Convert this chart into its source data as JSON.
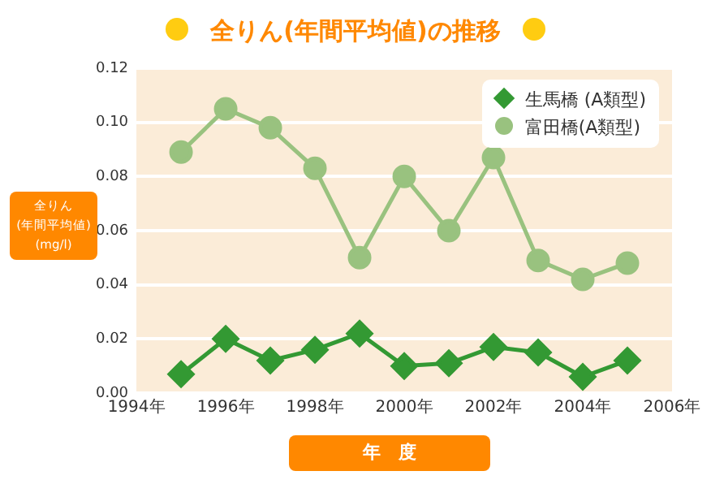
{
  "chart_data": {
    "type": "line",
    "title": "全りん(年間平均値)の推移",
    "xlabel": "年　度",
    "ylabel": "全りん\n(年間平均値)\n(mg/l)",
    "x": [
      1995,
      1996,
      1997,
      1998,
      1999,
      2000,
      2001,
      2002,
      2003,
      2004,
      2005
    ],
    "series": [
      {
        "name": "生馬橋 (A類型)",
        "color": "#339933",
        "marker": "diamond",
        "values": [
          0.007,
          0.02,
          0.012,
          0.016,
          0.022,
          0.01,
          0.011,
          0.017,
          0.015,
          0.006,
          0.012
        ]
      },
      {
        "name": "富田橋(A類型)",
        "color": "#99c27f",
        "marker": "circle",
        "values": [
          0.089,
          0.105,
          0.098,
          0.083,
          0.05,
          0.08,
          0.06,
          0.087,
          0.049,
          0.042,
          0.048
        ]
      }
    ],
    "xlim": [
      1994,
      2006
    ],
    "xticks": [
      {
        "value": 1994,
        "label": "1994年"
      },
      {
        "value": 1996,
        "label": "1996年"
      },
      {
        "value": 1998,
        "label": "1998年"
      },
      {
        "value": 2000,
        "label": "2000年"
      },
      {
        "value": 2002,
        "label": "2002年"
      },
      {
        "value": 2004,
        "label": "2004年"
      },
      {
        "value": 2006,
        "label": "2006年"
      }
    ],
    "ylim": [
      0,
      0.12
    ],
    "yticks": [
      {
        "value": 0,
        "label": "0.00"
      },
      {
        "value": 0.02,
        "label": "0.02"
      },
      {
        "value": 0.04,
        "label": "0.04"
      },
      {
        "value": 0.06,
        "label": "0.06"
      },
      {
        "value": 0.08,
        "label": "0.08"
      },
      {
        "value": 0.1,
        "label": "0.10"
      },
      {
        "value": 0.12,
        "label": "0.12"
      }
    ],
    "grid": "y",
    "legend": "top right"
  }
}
